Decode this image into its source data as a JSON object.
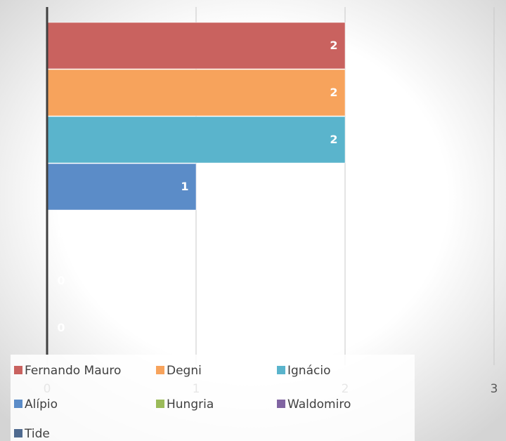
{
  "chart_data": {
    "type": "bar",
    "orientation": "horizontal",
    "series": [
      {
        "name": "Fernando Mauro",
        "color": "#c9625f",
        "values": [
          2
        ]
      },
      {
        "name": "Degni",
        "color": "#f7a35c",
        "values": [
          2
        ]
      },
      {
        "name": "Ignácio",
        "color": "#5ab4cc",
        "values": [
          2
        ]
      },
      {
        "name": "Alípio",
        "color": "#5b8cc8",
        "values": [
          1
        ]
      },
      {
        "name": "Hungria",
        "color": "#9bbb59",
        "values": [
          0
        ]
      },
      {
        "name": "Waldomiro",
        "color": "#8064a2",
        "values": [
          0
        ]
      },
      {
        "name": "Tide",
        "color": "#4f6a8f",
        "values": [
          0
        ]
      }
    ],
    "xlim": [
      0,
      3
    ],
    "xticks": [
      0,
      1,
      2,
      3
    ],
    "grid": true
  }
}
